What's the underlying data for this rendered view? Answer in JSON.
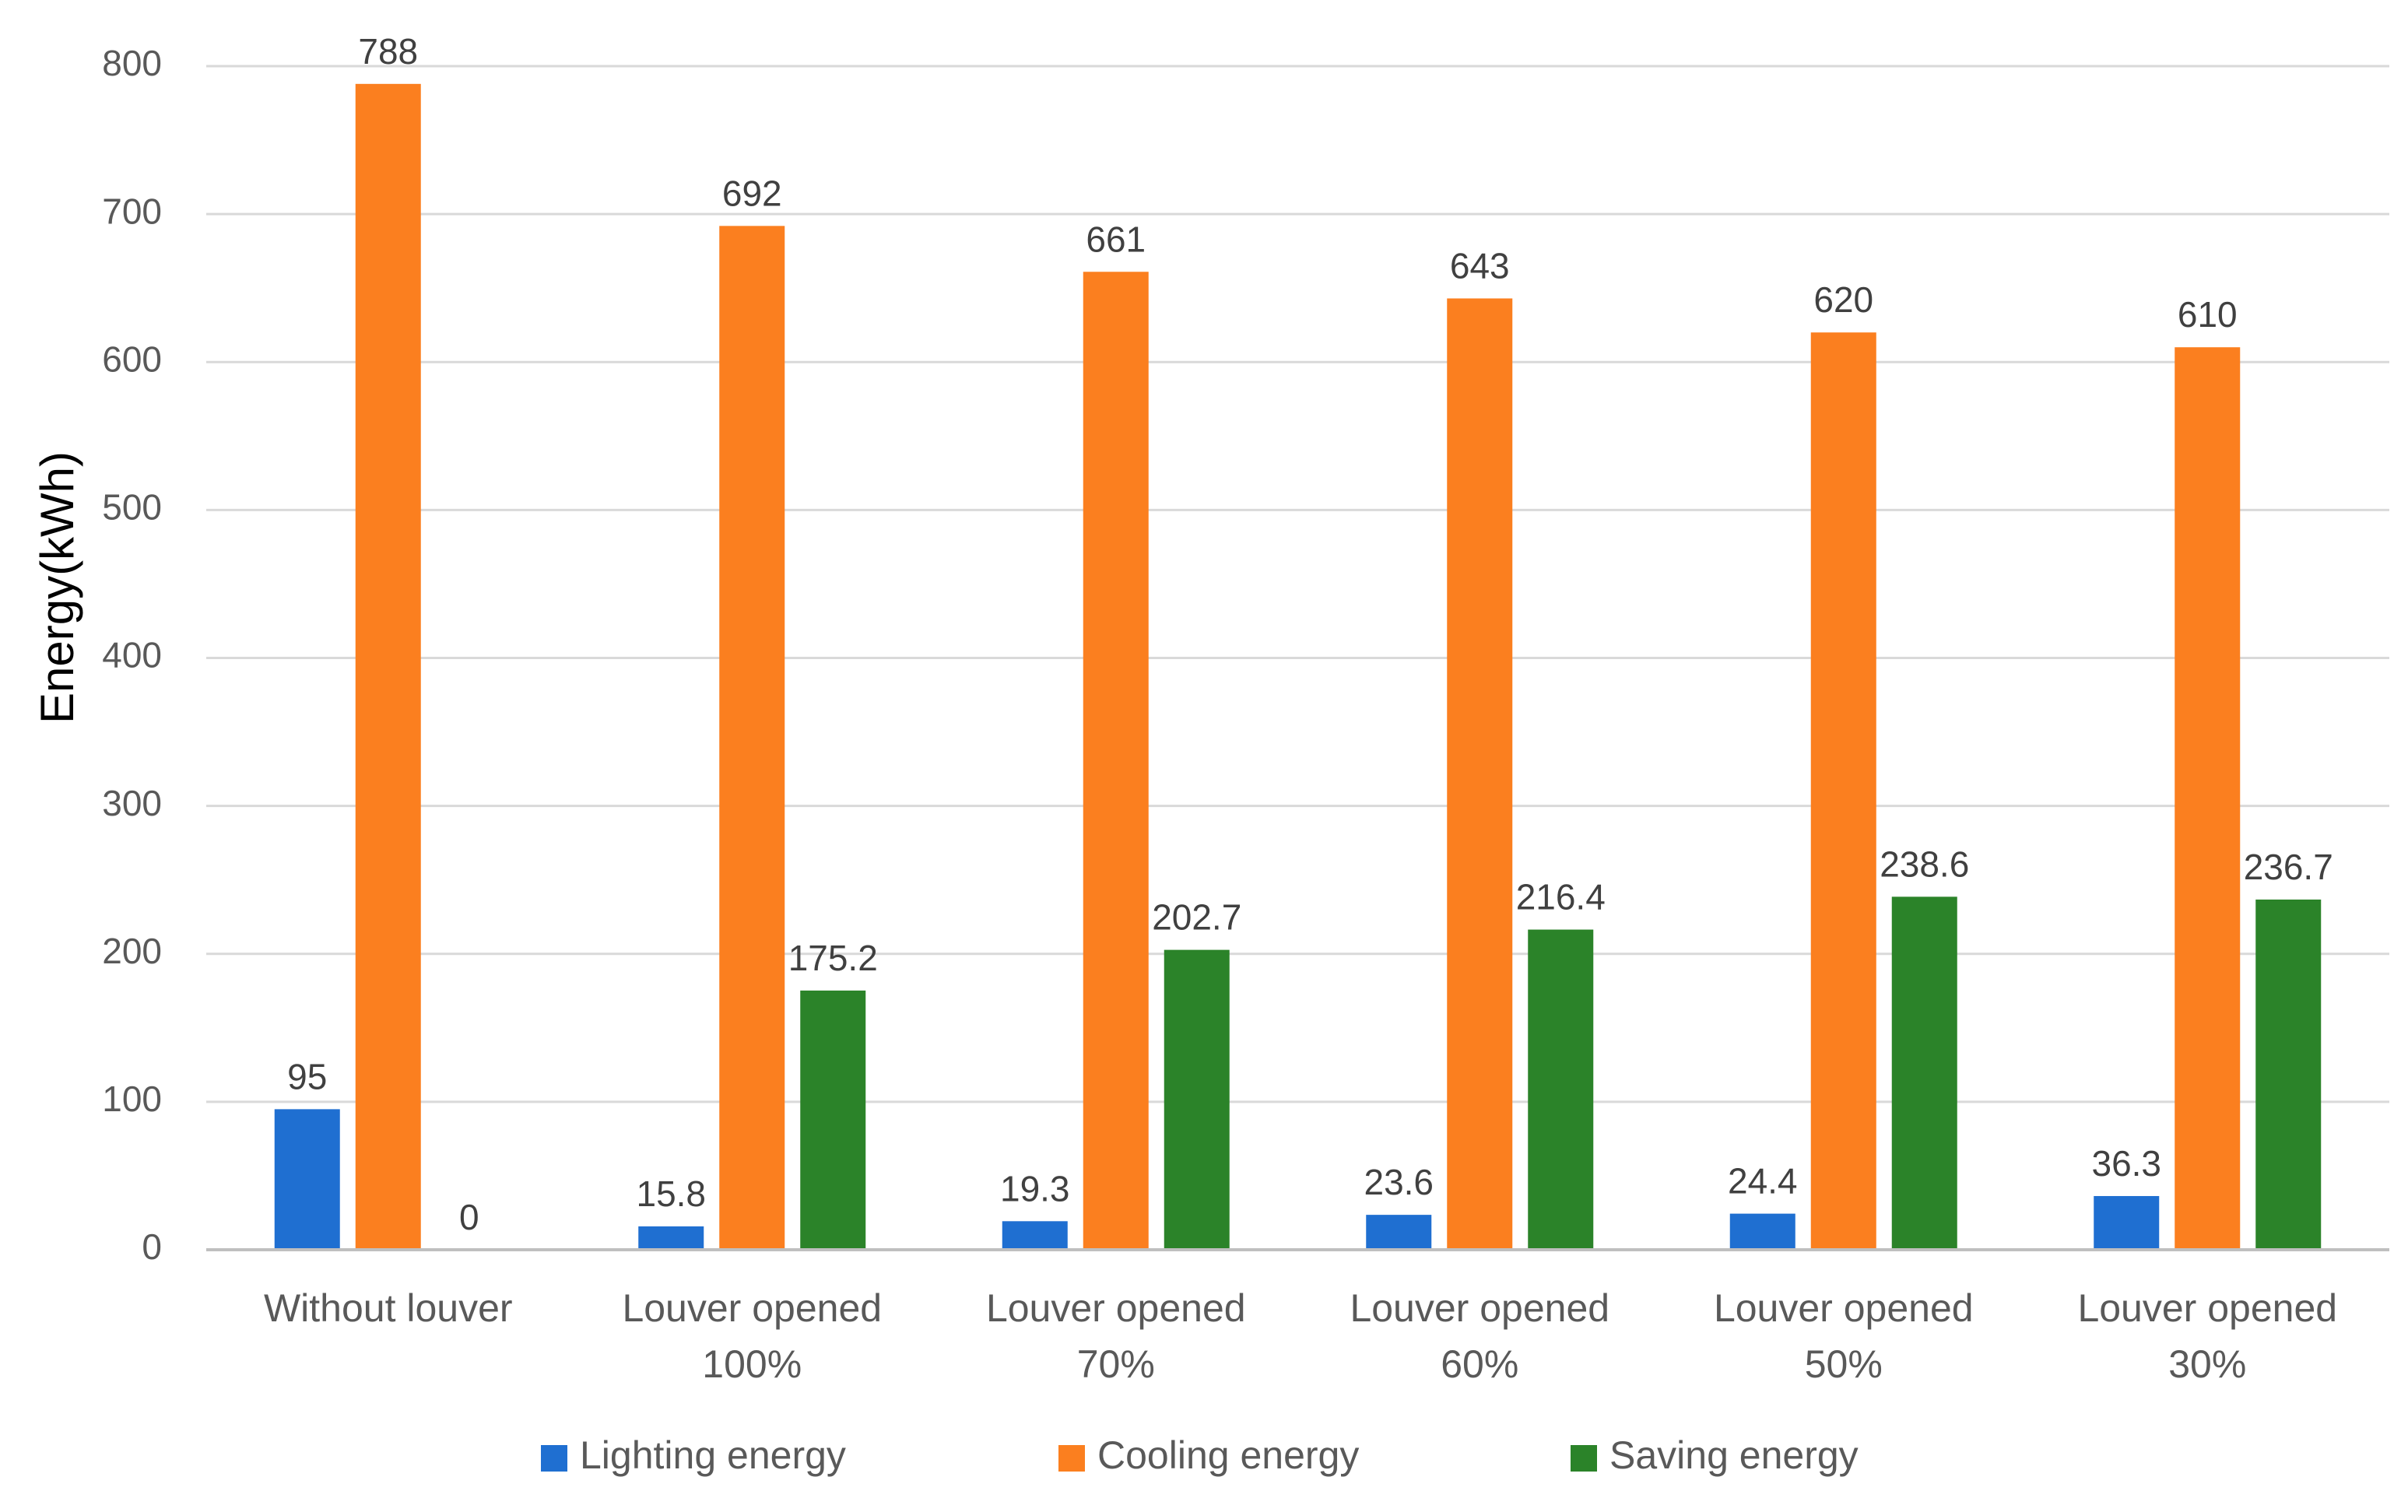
{
  "chart_data": {
    "type": "bar",
    "title": "",
    "xlabel": "",
    "ylabel": "Energy(kWh)",
    "ylim": [
      0,
      800
    ],
    "yticks": [
      0,
      100,
      200,
      300,
      400,
      500,
      600,
      700,
      800
    ],
    "grid": true,
    "legend_position": "bottom",
    "categories": [
      [
        "Without louver"
      ],
      [
        "Louver opened",
        "100%"
      ],
      [
        "Louver opened",
        "70%"
      ],
      [
        "Louver opened",
        "60%"
      ],
      [
        "Louver opened",
        "50%"
      ],
      [
        "Louver opened",
        "30%"
      ]
    ],
    "series": [
      {
        "name": "Lighting energy",
        "color": "#1f6fd1",
        "values": [
          95,
          15.8,
          19.3,
          23.6,
          24.4,
          36.3
        ]
      },
      {
        "name": "Cooling energy",
        "color": "#fb7f1f",
        "values": [
          788,
          692,
          661,
          643,
          620,
          610
        ]
      },
      {
        "name": "Saving energy",
        "color": "#2b8329",
        "values": [
          0,
          175.2,
          202.7,
          216.4,
          238.6,
          236.7
        ]
      }
    ]
  },
  "colors": {
    "grid": "#d9d9d9",
    "axis": "#bfbfbf",
    "tick_text": "#595959",
    "label_text": "#404040",
    "ylabel_text": "#000000"
  }
}
